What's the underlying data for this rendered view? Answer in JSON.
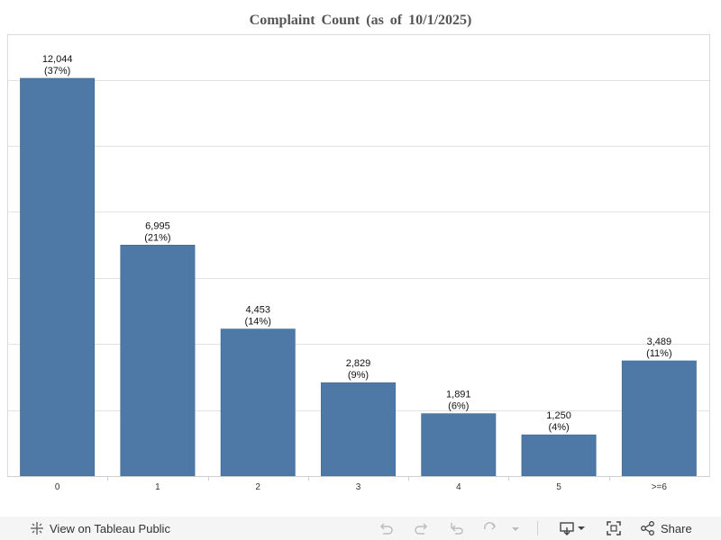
{
  "chart_data": {
    "type": "bar",
    "title": "Complaint Count (as of 10/1/2025)",
    "categories": [
      "0",
      "1",
      "2",
      "3",
      "4",
      "5",
      ">=6"
    ],
    "values": [
      12044,
      6995,
      4453,
      2829,
      1891,
      1250,
      3489
    ],
    "value_labels": [
      "12,044",
      "6,995",
      "4,453",
      "2,829",
      "1,891",
      "1,250",
      "3,489"
    ],
    "percent_labels": [
      "(37%)",
      "(21%)",
      "(14%)",
      "(9%)",
      "(6%)",
      "(4%)",
      "(11%)"
    ],
    "ylim": [
      0,
      13000
    ],
    "grid": true,
    "bar_color": "#4e79a7"
  },
  "toolbar": {
    "view_label": "View on Tableau Public",
    "share_label": "Share",
    "icons": [
      "tableau-icon",
      "undo-icon",
      "redo-icon",
      "revert-icon",
      "refresh-icon",
      "pause-icon",
      "download-icon",
      "fullscreen-icon",
      "share-icon"
    ]
  }
}
